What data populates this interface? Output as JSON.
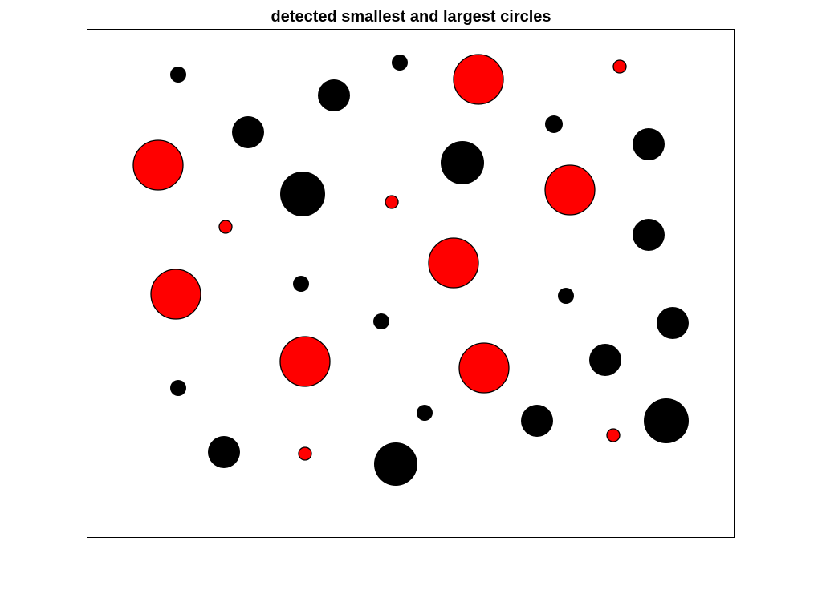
{
  "chart_data": {
    "type": "scatter",
    "title": "detected smallest and largest circles",
    "xlabel": "",
    "ylabel": "",
    "xlim": [
      0,
      806
    ],
    "ylim": [
      0,
      634
    ],
    "y_direction": "down",
    "axis_ticks": "hidden",
    "grid": false,
    "colors": {
      "detected": "#ff0000",
      "detected_outline": "#000000",
      "undetected": "#000000",
      "axes": "#000000",
      "background": "#ffffff"
    },
    "series": [
      {
        "category": "undetected circles",
        "color": "#000000",
        "points": [
          {
            "x": 113,
            "y": 56,
            "r": 10
          },
          {
            "x": 389,
            "y": 41,
            "r": 10
          },
          {
            "x": 307,
            "y": 82,
            "r": 20
          },
          {
            "x": 200,
            "y": 128,
            "r": 20
          },
          {
            "x": 581,
            "y": 118,
            "r": 11
          },
          {
            "x": 699,
            "y": 143,
            "r": 20
          },
          {
            "x": 467,
            "y": 166,
            "r": 27
          },
          {
            "x": 268,
            "y": 205,
            "r": 28
          },
          {
            "x": 699,
            "y": 256,
            "r": 20
          },
          {
            "x": 266,
            "y": 317,
            "r": 10
          },
          {
            "x": 596,
            "y": 332,
            "r": 10
          },
          {
            "x": 366,
            "y": 364,
            "r": 10
          },
          {
            "x": 729,
            "y": 366,
            "r": 20
          },
          {
            "x": 645,
            "y": 412,
            "r": 20
          },
          {
            "x": 113,
            "y": 447,
            "r": 10
          },
          {
            "x": 420,
            "y": 478,
            "r": 10
          },
          {
            "x": 560,
            "y": 488,
            "r": 20
          },
          {
            "x": 721,
            "y": 488,
            "r": 28
          },
          {
            "x": 170,
            "y": 527,
            "r": 20
          },
          {
            "x": 384,
            "y": 542,
            "r": 27
          }
        ]
      },
      {
        "category": "detected smallest and largest circles",
        "color": "#ff0000",
        "points": [
          {
            "x": 487,
            "y": 62,
            "r": 31
          },
          {
            "x": 663,
            "y": 46,
            "r": 8
          },
          {
            "x": 88,
            "y": 169,
            "r": 31
          },
          {
            "x": 601,
            "y": 200,
            "r": 31
          },
          {
            "x": 379,
            "y": 215,
            "r": 8
          },
          {
            "x": 172,
            "y": 246,
            "r": 8
          },
          {
            "x": 456,
            "y": 291,
            "r": 31
          },
          {
            "x": 110,
            "y": 330,
            "r": 31
          },
          {
            "x": 271,
            "y": 414,
            "r": 31
          },
          {
            "x": 494,
            "y": 422,
            "r": 31
          },
          {
            "x": 655,
            "y": 506,
            "r": 8
          },
          {
            "x": 271,
            "y": 529,
            "r": 8
          }
        ]
      }
    ]
  }
}
